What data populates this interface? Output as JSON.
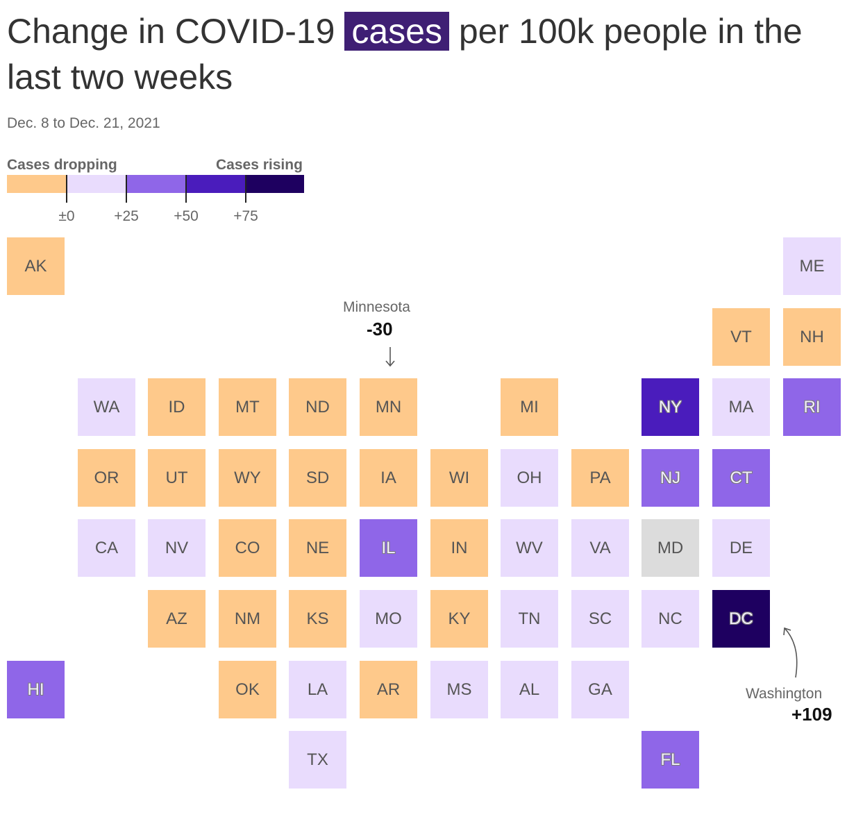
{
  "title": {
    "before": "Change in COVID-19 ",
    "highlight": "cases",
    "after": " per 100k people in the last two weeks",
    "highlight_color": "#3f1f74"
  },
  "subtitle": "Dec. 8 to Dec. 21, 2021",
  "legend": {
    "left_label": "Cases dropping",
    "right_label": "Cases rising",
    "bins": [
      {
        "color": "#fec98b"
      },
      {
        "color": "#e9dcfd"
      },
      {
        "color": "#8f66e8"
      },
      {
        "color": "#4a1cbc"
      },
      {
        "color": "#1e0060"
      }
    ],
    "ticks": [
      "±0",
      "+25",
      "+50",
      "+75"
    ]
  },
  "colors": {
    "no_data": "#dcdcdc"
  },
  "states": [
    {
      "abbr": "AK",
      "bin": 0
    },
    {
      "abbr": "ME",
      "bin": 1
    },
    {
      "abbr": "VT",
      "bin": 0
    },
    {
      "abbr": "NH",
      "bin": 0
    },
    {
      "abbr": "WA",
      "bin": 1
    },
    {
      "abbr": "ID",
      "bin": 0
    },
    {
      "abbr": "MT",
      "bin": 0
    },
    {
      "abbr": "ND",
      "bin": 0
    },
    {
      "abbr": "MN",
      "bin": 0
    },
    {
      "abbr": "MI",
      "bin": 0
    },
    {
      "abbr": "NY",
      "bin": 3
    },
    {
      "abbr": "MA",
      "bin": 1
    },
    {
      "abbr": "RI",
      "bin": 2
    },
    {
      "abbr": "OR",
      "bin": 0
    },
    {
      "abbr": "UT",
      "bin": 0
    },
    {
      "abbr": "WY",
      "bin": 0
    },
    {
      "abbr": "SD",
      "bin": 0
    },
    {
      "abbr": "IA",
      "bin": 0
    },
    {
      "abbr": "WI",
      "bin": 0
    },
    {
      "abbr": "OH",
      "bin": 1
    },
    {
      "abbr": "PA",
      "bin": 0
    },
    {
      "abbr": "NJ",
      "bin": 2
    },
    {
      "abbr": "CT",
      "bin": 2
    },
    {
      "abbr": "CA",
      "bin": 1
    },
    {
      "abbr": "NV",
      "bin": 1
    },
    {
      "abbr": "CO",
      "bin": 0
    },
    {
      "abbr": "NE",
      "bin": 0
    },
    {
      "abbr": "IL",
      "bin": 2
    },
    {
      "abbr": "IN",
      "bin": 0
    },
    {
      "abbr": "WV",
      "bin": 1
    },
    {
      "abbr": "VA",
      "bin": 1
    },
    {
      "abbr": "MD",
      "bin": null
    },
    {
      "abbr": "DE",
      "bin": 1
    },
    {
      "abbr": "AZ",
      "bin": 0
    },
    {
      "abbr": "NM",
      "bin": 0
    },
    {
      "abbr": "KS",
      "bin": 0
    },
    {
      "abbr": "MO",
      "bin": 1
    },
    {
      "abbr": "KY",
      "bin": 0
    },
    {
      "abbr": "TN",
      "bin": 1
    },
    {
      "abbr": "SC",
      "bin": 1
    },
    {
      "abbr": "NC",
      "bin": 1
    },
    {
      "abbr": "DC",
      "bin": 4
    },
    {
      "abbr": "HI",
      "bin": 2
    },
    {
      "abbr": "OK",
      "bin": 0
    },
    {
      "abbr": "LA",
      "bin": 1
    },
    {
      "abbr": "AR",
      "bin": 0
    },
    {
      "abbr": "MS",
      "bin": 1
    },
    {
      "abbr": "AL",
      "bin": 1
    },
    {
      "abbr": "GA",
      "bin": 1
    },
    {
      "abbr": "TX",
      "bin": 1
    },
    {
      "abbr": "FL",
      "bin": 2
    }
  ],
  "annotations": [
    {
      "id": "mn",
      "name": "Minnesota",
      "value": "-30"
    },
    {
      "id": "dc",
      "name": "Washington",
      "value": "+109"
    }
  ]
}
